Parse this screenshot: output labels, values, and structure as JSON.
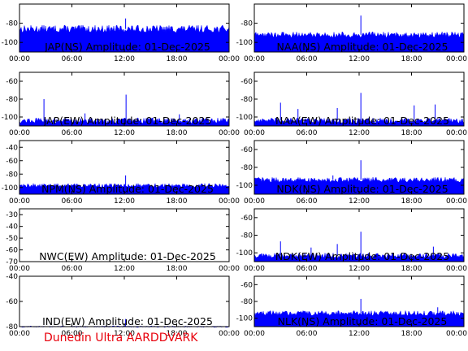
{
  "credit": "Dunedin Ultra AARDDVARK",
  "colors": {
    "trace": "#0000ff",
    "frame": "#000000",
    "background": "#ffffff",
    "credit": "#e8000b"
  },
  "chart_data": [
    {
      "type": "area",
      "title": "JAP(NS) Amplitude: 01-Dec-2025",
      "column": "left",
      "row": 0,
      "xticks": [
        "00:00",
        "06:00",
        "12:00",
        "18:00",
        "00:00"
      ],
      "xlim_hours": [
        0,
        24
      ],
      "yticks": [
        -80,
        -100
      ],
      "ylim": [
        -110,
        -60
      ],
      "baseline_db": -86,
      "noise_db": 4,
      "spikes": [
        {
          "t": 12.15,
          "v": -75
        }
      ]
    },
    {
      "type": "area",
      "title": "NAA(NS) Amplitude: 01-Dec-2025",
      "column": "right",
      "row": 0,
      "xticks": [
        "00:00",
        "06:00",
        "12:00",
        "18:00",
        "00:00"
      ],
      "xlim_hours": [
        0,
        24
      ],
      "yticks": [
        -80,
        -100
      ],
      "ylim": [
        -110,
        -60
      ],
      "baseline_db": -92,
      "noise_db": 3,
      "spikes": [
        {
          "t": 12.2,
          "v": -72
        },
        {
          "t": 21.5,
          "v": -89
        }
      ]
    },
    {
      "type": "area",
      "title": "JAP(EW) Amplitude: 01-Dec-2025",
      "column": "left",
      "row": 1,
      "xticks": [
        "00:00",
        "06:00",
        "12:00",
        "18:00",
        "00:00"
      ],
      "xlim_hours": [
        0,
        24
      ],
      "yticks": [
        -60,
        -80,
        -100
      ],
      "ylim": [
        -110,
        -50
      ],
      "baseline_db": -104,
      "noise_db": 3,
      "spikes": [
        {
          "t": 2.8,
          "v": -80
        },
        {
          "t": 12.2,
          "v": -75
        },
        {
          "t": 7.5,
          "v": -96
        },
        {
          "t": 18.3,
          "v": -97
        }
      ]
    },
    {
      "type": "area",
      "title": "NAA(EW) Amplitude: 01-Dec-2025",
      "column": "right",
      "row": 1,
      "xticks": [
        "00:00",
        "06:00",
        "12:00",
        "18:00",
        "00:00"
      ],
      "xlim_hours": [
        0,
        24
      ],
      "yticks": [
        -60,
        -80,
        -100
      ],
      "ylim": [
        -110,
        -50
      ],
      "baseline_db": -104,
      "noise_db": 3,
      "spikes": [
        {
          "t": 3.0,
          "v": -84
        },
        {
          "t": 5.0,
          "v": -91
        },
        {
          "t": 9.5,
          "v": -90
        },
        {
          "t": 12.2,
          "v": -73
        },
        {
          "t": 18.3,
          "v": -87
        },
        {
          "t": 20.7,
          "v": -86
        }
      ]
    },
    {
      "type": "area",
      "title": "NPM(NS) Amplitude: 01-Dec-2025",
      "column": "left",
      "row": 2,
      "xticks": [
        "00:00",
        "06:00",
        "12:00",
        "18:00",
        "00:00"
      ],
      "xlim_hours": [
        0,
        24
      ],
      "yticks": [
        -40,
        -60,
        -80,
        -100
      ],
      "ylim": [
        -110,
        -30
      ],
      "baseline_db": -97,
      "noise_db": 3,
      "spikes": [
        {
          "t": 12.15,
          "v": -82
        }
      ]
    },
    {
      "type": "area",
      "title": "NDK(NS) Amplitude: 01-Dec-2025",
      "column": "right",
      "row": 2,
      "xticks": [
        "00:00",
        "06:00",
        "12:00",
        "18:00",
        "00:00"
      ],
      "xlim_hours": [
        0,
        24
      ],
      "yticks": [
        -60,
        -80,
        -100
      ],
      "ylim": [
        -110,
        -50
      ],
      "baseline_db": -94,
      "noise_db": 3,
      "spikes": [
        {
          "t": 12.2,
          "v": -72
        },
        {
          "t": 9.0,
          "v": -89
        }
      ]
    },
    {
      "type": "area",
      "title": "NWC(EW) Amplitude: 01-Dec-2025",
      "column": "left",
      "row": 3,
      "xticks": [
        "00:00",
        "06:00",
        "12:00",
        "18:00",
        "00:00"
      ],
      "xlim_hours": [
        0,
        24
      ],
      "yticks": [
        -30,
        -40,
        -50,
        -60,
        -70
      ],
      "ylim": [
        -70,
        -25
      ],
      "baseline_db": null,
      "noise_db": 0,
      "spikes": []
    },
    {
      "type": "area",
      "title": "NDK(EW) Amplitude: 01-Dec-2025",
      "column": "right",
      "row": 3,
      "xticks": [
        "00:00",
        "06:00",
        "12:00",
        "18:00",
        "00:00"
      ],
      "xlim_hours": [
        0,
        24
      ],
      "yticks": [
        -60,
        -80,
        -100
      ],
      "ylim": [
        -110,
        -50
      ],
      "baseline_db": -103,
      "noise_db": 3,
      "spikes": [
        {
          "t": 3.0,
          "v": -87
        },
        {
          "t": 6.5,
          "v": -94
        },
        {
          "t": 9.5,
          "v": -90
        },
        {
          "t": 12.2,
          "v": -76
        },
        {
          "t": 20.5,
          "v": -93
        }
      ]
    },
    {
      "type": "area",
      "title": "IND(EW) Amplitude: 01-Dec-2025",
      "column": "left",
      "row": 4,
      "xticks": [
        "00:00",
        "06:00",
        "12:00",
        "18:00",
        "00:00"
      ],
      "xlim_hours": [
        0,
        24
      ],
      "yticks": [
        -40,
        -60,
        -80
      ],
      "ylim": [
        -80,
        -40
      ],
      "baseline_db": -80,
      "noise_db": 0.6,
      "spikes": [
        {
          "t": 12.15,
          "v": -74
        }
      ]
    },
    {
      "type": "area",
      "title": "NLK(NS) Amplitude: 01-Dec-2025",
      "column": "right",
      "row": 4,
      "xticks": [
        "00:00",
        "06:00",
        "12:00",
        "18:00",
        "00:00"
      ],
      "xlim_hours": [
        0,
        24
      ],
      "yticks": [
        -60,
        -80,
        -100
      ],
      "ylim": [
        -110,
        -50
      ],
      "baseline_db": -94,
      "noise_db": 3,
      "spikes": [
        {
          "t": 12.2,
          "v": -77
        },
        {
          "t": 21.0,
          "v": -87
        }
      ]
    }
  ]
}
